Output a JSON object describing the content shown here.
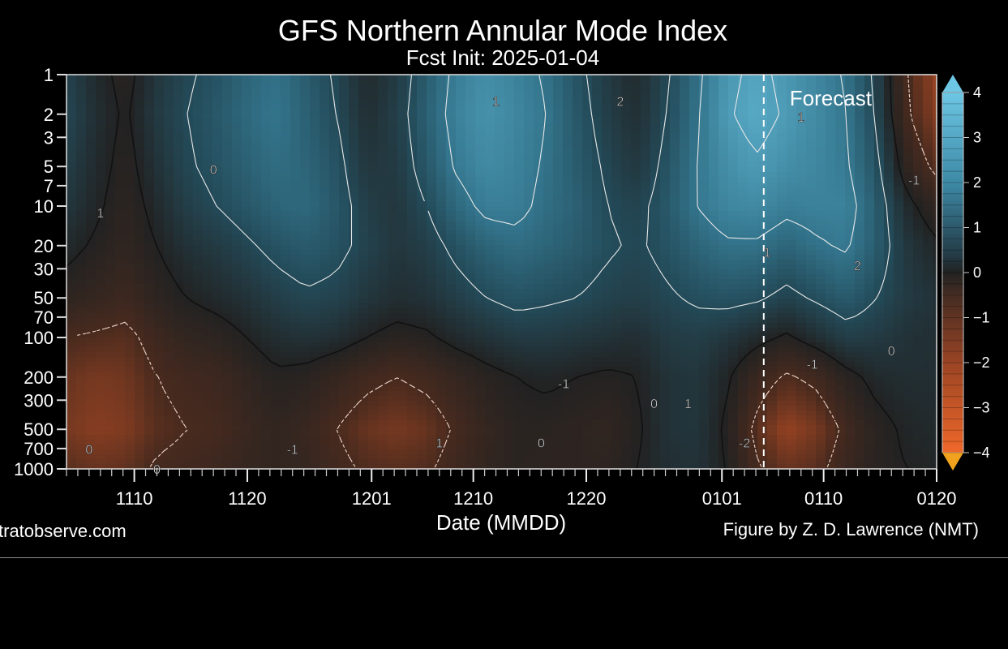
{
  "chart_data": {
    "type": "heatmap",
    "title": "GFS Northern Annular Mode Index",
    "subtitle": "Fcst Init: 2025-01-04",
    "xlabel": "Date (MMDD)",
    "ylabel": "",
    "x_range": [
      "1104",
      "1221 (+30 days, i.e. 0120 + ~4)"
    ],
    "x_ticks": [
      "1110",
      "1120",
      "1201",
      "1210",
      "1220",
      "0101",
      "0110",
      "0120"
    ],
    "y_scale": "log-reversed",
    "y_ticks": [
      1,
      2,
      3,
      5,
      7,
      10,
      20,
      30,
      50,
      70,
      100,
      200,
      300,
      500,
      700,
      1000
    ],
    "y_range": [
      1000,
      1
    ],
    "colorbar": {
      "ticks": [
        4,
        3,
        2,
        1,
        0,
        -1,
        -2,
        -3,
        -4
      ],
      "range": [
        -4,
        4
      ],
      "extend": "both",
      "colors": {
        "positive": "#4a9ab8",
        "neutral": "#222222",
        "negative": "#e0622a"
      }
    },
    "forecast_line_date": "0104",
    "forecast_label": "Forecast",
    "contour_labels": [
      "1",
      "0",
      "-1",
      "2",
      "-2"
    ],
    "series": [
      {
        "p": 1,
        "values": [
          0.8,
          0.2,
          -0.2,
          0.5,
          0.9,
          1.2,
          1.6,
          1.9,
          1.4,
          0.9,
          0.2,
          0.6,
          1.4,
          2.2,
          2.6,
          2.3,
          1.9,
          1.2,
          0.6,
          0.2,
          0.9,
          1.8,
          2.8,
          3.2,
          2.8,
          2.4,
          1.9,
          0.8,
          -1.0,
          -2.0
        ]
      },
      {
        "p": 2,
        "values": [
          0.9,
          0.3,
          -0.1,
          0.6,
          1.0,
          1.3,
          1.7,
          2.0,
          1.5,
          1.0,
          0.3,
          0.7,
          1.5,
          2.3,
          2.7,
          2.4,
          2.0,
          1.3,
          0.7,
          0.3,
          1.0,
          1.9,
          2.9,
          3.3,
          2.9,
          2.5,
          2.0,
          0.9,
          -0.9,
          -1.8
        ]
      },
      {
        "p": 5,
        "values": [
          0.7,
          0.2,
          -0.2,
          0.4,
          0.9,
          1.2,
          1.5,
          1.8,
          1.6,
          1.2,
          0.5,
          0.6,
          1.3,
          2.1,
          2.5,
          2.3,
          1.9,
          1.4,
          0.9,
          0.5,
          1.2,
          2.0,
          2.6,
          2.9,
          2.6,
          2.4,
          2.1,
          1.2,
          -0.4,
          -1.2
        ]
      },
      {
        "p": 10,
        "values": [
          0.5,
          0.1,
          -0.3,
          0.2,
          0.7,
          1.0,
          1.3,
          1.6,
          1.7,
          1.3,
          0.7,
          0.5,
          1.0,
          1.7,
          2.2,
          2.2,
          1.8,
          1.5,
          1.0,
          0.8,
          1.3,
          2.0,
          2.4,
          2.5,
          2.2,
          2.3,
          2.3,
          1.4,
          0.2,
          -0.4
        ]
      },
      {
        "p": 20,
        "values": [
          0.2,
          -0.1,
          -0.4,
          0.0,
          0.4,
          0.6,
          0.9,
          1.2,
          1.4,
          1.2,
          0.8,
          0.5,
          0.7,
          1.2,
          1.6,
          1.8,
          1.6,
          1.4,
          1.1,
          0.9,
          1.2,
          1.6,
          1.9,
          1.9,
          1.6,
          1.9,
          2.1,
          1.4,
          0.5,
          0.1
        ]
      },
      {
        "p": 50,
        "values": [
          -0.3,
          -0.5,
          -0.7,
          -0.3,
          0.0,
          0.2,
          0.4,
          0.7,
          0.9,
          0.8,
          0.5,
          0.3,
          0.4,
          0.7,
          1.0,
          1.2,
          1.1,
          1.0,
          0.8,
          0.7,
          0.9,
          1.1,
          1.2,
          1.1,
          0.8,
          1.1,
          1.4,
          1.0,
          0.6,
          0.4
        ]
      },
      {
        "p": 100,
        "values": [
          -1.0,
          -1.1,
          -1.2,
          -0.7,
          -0.4,
          -0.3,
          0.0,
          0.3,
          0.4,
          0.3,
          0.0,
          -0.2,
          -0.1,
          0.2,
          0.4,
          0.6,
          0.6,
          0.5,
          0.4,
          0.3,
          0.6,
          0.7,
          0.5,
          0.2,
          -0.1,
          0.3,
          0.7,
          0.6,
          0.4,
          0.3
        ]
      },
      {
        "p": 200,
        "values": [
          -1.4,
          -1.6,
          -1.5,
          -1.0,
          -0.8,
          -0.7,
          -0.4,
          -0.1,
          -0.2,
          -0.5,
          -0.8,
          -1.0,
          -0.8,
          -0.5,
          -0.2,
          0.0,
          0.1,
          0.0,
          -0.1,
          0.0,
          0.4,
          0.5,
          0.1,
          -0.6,
          -1.1,
          -0.8,
          -0.2,
          0.2,
          0.3,
          0.3
        ]
      },
      {
        "p": 500,
        "values": [
          -1.6,
          -1.8,
          -1.7,
          -1.2,
          -1.0,
          -0.9,
          -0.6,
          -0.4,
          -0.6,
          -1.0,
          -1.4,
          -1.6,
          -1.4,
          -0.9,
          -0.5,
          -0.2,
          -0.2,
          -0.3,
          -0.4,
          -0.1,
          0.4,
          0.5,
          -0.1,
          -1.2,
          -2.0,
          -1.6,
          -0.8,
          -0.2,
          0.1,
          0.2
        ]
      },
      {
        "p": 1000,
        "values": [
          -1.2,
          -1.4,
          -1.3,
          -0.9,
          -0.8,
          -0.7,
          -0.5,
          -0.4,
          -0.5,
          -0.8,
          -1.1,
          -1.2,
          -1.1,
          -0.7,
          -0.4,
          -0.2,
          -0.3,
          -0.3,
          -0.3,
          0.0,
          0.3,
          0.4,
          0.0,
          -0.9,
          -1.4,
          -1.2,
          -0.6,
          -0.2,
          0.0,
          0.1
        ]
      }
    ]
  },
  "footer": {
    "left_credit": "tratobserve.com",
    "right_credit": "Figure by Z. D. Lawrence (NMT)"
  }
}
